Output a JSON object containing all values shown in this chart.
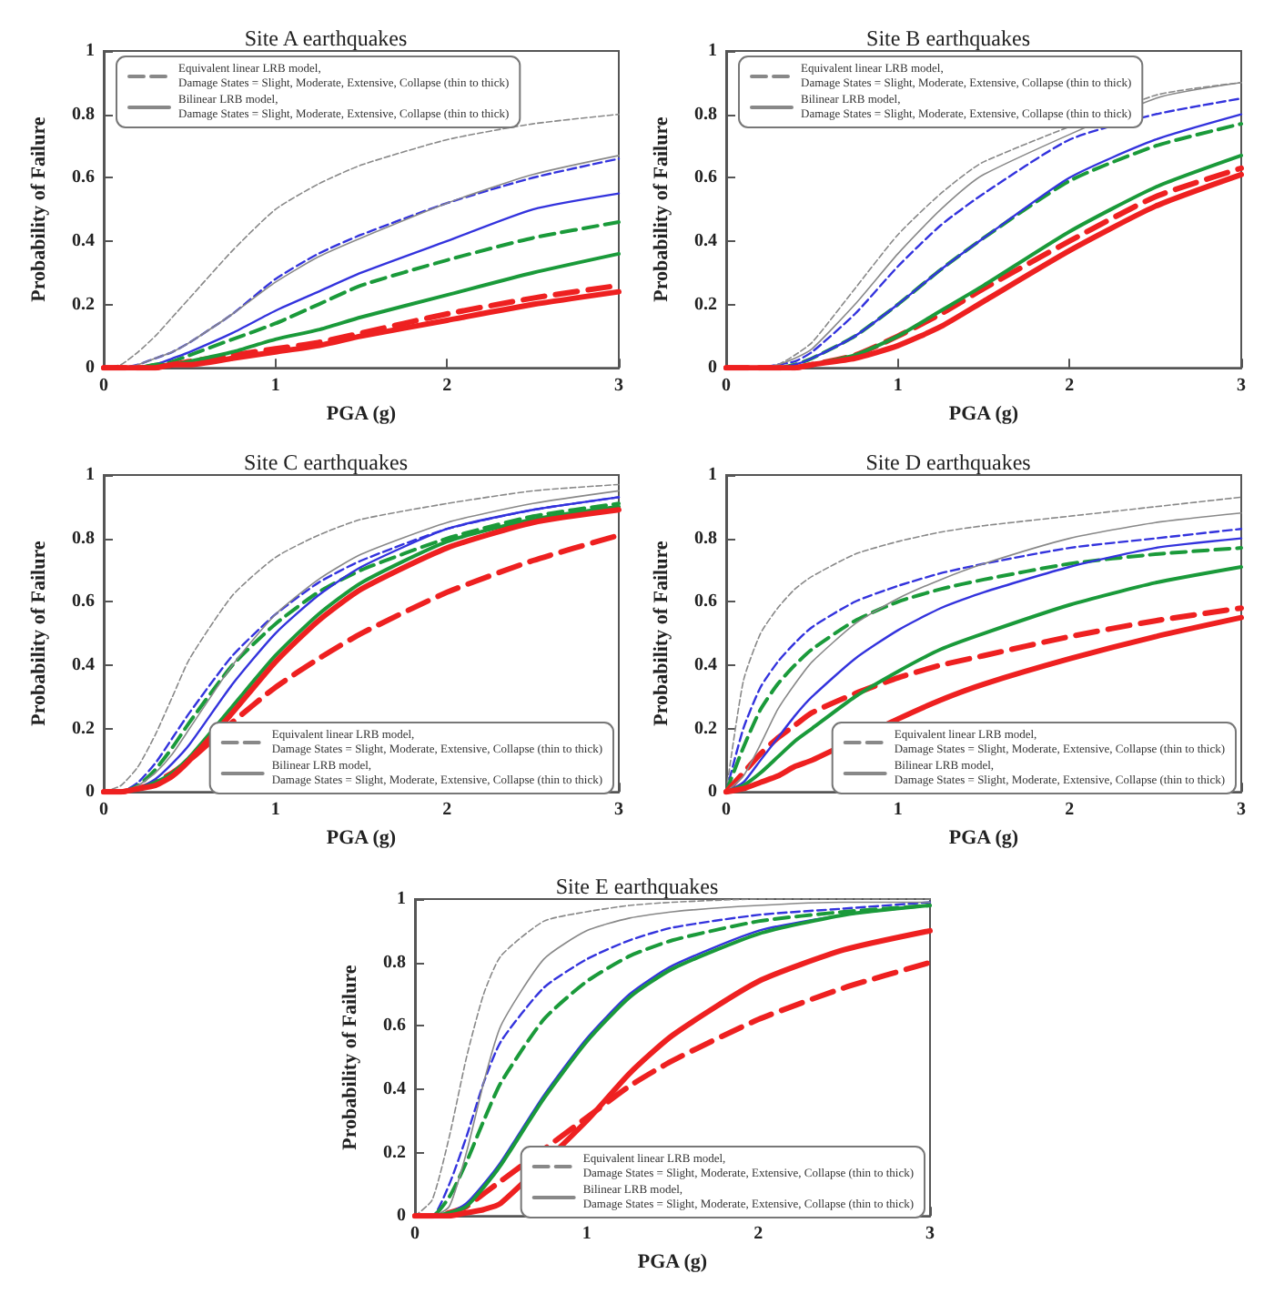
{
  "chart_data": [
    {
      "type": "line",
      "title": "Site A earthquakes",
      "xlabel": "PGA (g)",
      "ylabel": "Probability of Failure",
      "xlim": [
        0,
        3
      ],
      "xticks": [
        0,
        1,
        2,
        3
      ],
      "ylim": [
        0,
        1
      ],
      "yticks": [
        0,
        0.2,
        0.4,
        0.6,
        0.8,
        1
      ],
      "legend": "top left",
      "marker": "none",
      "grid": false,
      "x": [
        0,
        0.1,
        0.2,
        0.3,
        0.4,
        0.5,
        0.75,
        1,
        1.25,
        1.5,
        2,
        2.5,
        3
      ],
      "series": [
        {
          "name": "Equivalent linear LRB model,\nDamage States = Slight, Moderate, Extensive, Collapse (thin to thick)",
          "color": "#888888",
          "line_style": "dashed",
          "values": [
            0,
            0.01,
            0.05,
            0.1,
            0.16,
            0.22,
            0.37,
            0.5,
            0.58,
            0.64,
            0.72,
            0.77,
            0.8
          ]
        },
        {
          "color": "#3333dd",
          "line_style": "dashed",
          "values": [
            0,
            0,
            0.01,
            0.03,
            0.05,
            0.08,
            0.17,
            0.28,
            0.36,
            0.42,
            0.52,
            0.6,
            0.66
          ]
        },
        {
          "color": "#1a9a3a",
          "line_style": "dashed",
          "values": [
            0,
            0,
            0,
            0.01,
            0.02,
            0.04,
            0.09,
            0.14,
            0.2,
            0.26,
            0.34,
            0.41,
            0.46
          ]
        },
        {
          "color": "#ee2020",
          "line_style": "dashed",
          "values": [
            0,
            0,
            0,
            0,
            0.01,
            0.02,
            0.04,
            0.06,
            0.08,
            0.11,
            0.17,
            0.22,
            0.26
          ]
        },
        {
          "name": "Bilinear LRB model,\nDamage States = Slight, Moderate, Extensive, Collapse (thin to thick)",
          "color": "#888888",
          "line_style": "solid",
          "values": [
            0,
            0,
            0.01,
            0.03,
            0.05,
            0.08,
            0.17,
            0.27,
            0.35,
            0.41,
            0.52,
            0.61,
            0.67
          ]
        },
        {
          "color": "#3333dd",
          "line_style": "solid",
          "values": [
            0,
            0,
            0,
            0.01,
            0.03,
            0.05,
            0.11,
            0.18,
            0.24,
            0.3,
            0.4,
            0.5,
            0.55
          ]
        },
        {
          "color": "#1a9a3a",
          "line_style": "solid",
          "values": [
            0,
            0,
            0,
            0.01,
            0.01,
            0.02,
            0.05,
            0.09,
            0.12,
            0.16,
            0.23,
            0.3,
            0.36
          ]
        },
        {
          "color": "#ee2020",
          "line_style": "solid",
          "values": [
            0,
            0,
            0,
            0,
            0.01,
            0.01,
            0.03,
            0.05,
            0.07,
            0.1,
            0.15,
            0.2,
            0.24
          ]
        }
      ]
    },
    {
      "type": "line",
      "title": "Site B earthquakes",
      "xlabel": "PGA (g)",
      "ylabel": "Probability of Failure",
      "xlim": [
        0,
        3
      ],
      "xticks": [
        0,
        1,
        2,
        3
      ],
      "ylim": [
        0,
        1
      ],
      "yticks": [
        0,
        0.2,
        0.4,
        0.6,
        0.8,
        1
      ],
      "legend": "top left",
      "marker": "none",
      "grid": false,
      "x": [
        0,
        0.1,
        0.2,
        0.3,
        0.4,
        0.5,
        0.75,
        1,
        1.25,
        1.5,
        2,
        2.5,
        3
      ],
      "series": [
        {
          "name": "Equivalent linear LRB model,\nDamage States = Slight, Moderate, Extensive, Collapse (thin to thick)",
          "color": "#888888",
          "line_style": "dashed",
          "values": [
            0,
            0,
            0,
            0.01,
            0.04,
            0.08,
            0.25,
            0.42,
            0.55,
            0.65,
            null,
            0.86,
            0.9
          ]
        },
        {
          "color": "#3333dd",
          "line_style": "dashed",
          "values": [
            0,
            0,
            0,
            0.01,
            0.02,
            0.05,
            0.17,
            0.32,
            0.45,
            0.55,
            0.72,
            0.8,
            0.85
          ]
        },
        {
          "color": "#1a9a3a",
          "line_style": "dashed",
          "values": [
            null,
            null,
            0,
            0,
            0.01,
            0.03,
            0.1,
            0.2,
            0.31,
            0.41,
            0.59,
            0.7,
            0.77
          ]
        },
        {
          "color": "#ee2020",
          "line_style": "dashed",
          "values": [
            0,
            0,
            0,
            0,
            0,
            0.01,
            0.04,
            0.1,
            0.17,
            0.25,
            0.4,
            0.54,
            0.63
          ]
        },
        {
          "name": "Bilinear LRB model,\nDamage States = Slight, Moderate, Extensive, Collapse (thin to thick)",
          "color": "#888888",
          "line_style": "solid",
          "values": [
            0,
            0,
            0,
            0.01,
            0.03,
            0.06,
            0.2,
            0.36,
            0.5,
            0.61,
            null,
            0.85,
            0.9
          ]
        },
        {
          "color": "#3333dd",
          "line_style": "solid",
          "values": [
            0,
            0,
            0,
            0,
            0.01,
            0.03,
            0.1,
            0.2,
            0.31,
            0.41,
            0.6,
            0.72,
            0.8
          ]
        },
        {
          "color": "#1a9a3a",
          "line_style": "solid",
          "values": [
            null,
            null,
            0,
            0,
            0,
            0.01,
            0.04,
            0.1,
            0.18,
            0.26,
            0.43,
            0.57,
            0.67
          ]
        },
        {
          "color": "#ee2020",
          "line_style": "solid",
          "values": [
            0,
            0,
            0,
            0,
            0,
            0.01,
            0.03,
            0.07,
            0.13,
            0.21,
            0.37,
            0.51,
            0.61
          ]
        }
      ]
    },
    {
      "type": "line",
      "title": "Site C earthquakes",
      "xlabel": "PGA (g)",
      "ylabel": "Probability of Failure",
      "xlim": [
        0,
        3
      ],
      "xticks": [
        0,
        1,
        2,
        3
      ],
      "ylim": [
        0,
        1
      ],
      "yticks": [
        0,
        0.2,
        0.4,
        0.6,
        0.8,
        1
      ],
      "legend": "bottom right",
      "marker": "none",
      "grid": false,
      "x": [
        0,
        0.1,
        0.2,
        0.3,
        0.4,
        0.5,
        0.75,
        1,
        1.25,
        1.5,
        2,
        2.5,
        3
      ],
      "series": [
        {
          "name": "Equivalent linear LRB model,\nDamage States = Slight, Moderate, Extensive, Collapse (thin to thick)",
          "color": "#888888",
          "line_style": "dashed",
          "values": [
            0,
            0.02,
            0.08,
            0.18,
            0.3,
            0.42,
            0.62,
            0.74,
            0.81,
            0.86,
            0.91,
            0.95,
            0.97
          ]
        },
        {
          "color": "#3333dd",
          "line_style": "dashed",
          "values": [
            0,
            0,
            0.03,
            0.09,
            0.17,
            0.25,
            0.43,
            0.56,
            0.66,
            0.73,
            0.83,
            0.89,
            0.93
          ]
        },
        {
          "color": "#1a9a3a",
          "line_style": "dashed",
          "values": [
            0,
            0,
            0.02,
            0.07,
            0.14,
            0.22,
            0.4,
            0.53,
            0.63,
            0.7,
            0.8,
            0.87,
            0.91
          ]
        },
        {
          "color": "#ee2020",
          "line_style": "dashed",
          "values": [
            0,
            0,
            0.01,
            0.03,
            0.06,
            0.1,
            0.22,
            0.33,
            0.42,
            0.5,
            0.63,
            0.73,
            0.81
          ]
        },
        {
          "name": "Bilinear LRB model,\nDamage States = Slight, Moderate, Extensive, Collapse (thin to thick)",
          "color": "#888888",
          "line_style": "solid",
          "values": [
            0,
            0,
            0.02,
            0.06,
            0.12,
            0.2,
            0.4,
            0.56,
            0.67,
            0.75,
            0.85,
            0.91,
            0.95
          ]
        },
        {
          "color": "#3333dd",
          "line_style": "solid",
          "values": [
            0,
            0,
            0.01,
            0.04,
            0.09,
            0.15,
            0.34,
            0.5,
            0.62,
            0.71,
            0.83,
            0.89,
            0.93
          ]
        },
        {
          "color": "#1a9a3a",
          "line_style": "solid",
          "values": [
            0,
            0,
            0.01,
            0.03,
            0.06,
            0.11,
            0.27,
            0.43,
            0.56,
            0.66,
            0.79,
            0.86,
            0.9
          ]
        },
        {
          "color": "#ee2020",
          "line_style": "solid",
          "values": [
            0,
            0,
            0.01,
            0.02,
            0.05,
            0.1,
            0.25,
            0.41,
            0.54,
            0.64,
            0.77,
            0.85,
            0.89
          ]
        }
      ]
    },
    {
      "type": "line",
      "title": "Site D earthquakes",
      "xlabel": "PGA (g)",
      "ylabel": "Probability of Failure",
      "xlim": [
        0,
        3
      ],
      "xticks": [
        0,
        1,
        2,
        3
      ],
      "ylim": [
        0,
        1
      ],
      "yticks": [
        0,
        0.2,
        0.4,
        0.6,
        0.8,
        1
      ],
      "legend": "bottom right",
      "marker": "none",
      "grid": false,
      "x": [
        0,
        0.1,
        0.2,
        0.3,
        0.4,
        0.5,
        0.75,
        1,
        1.25,
        1.5,
        2,
        2.5,
        3
      ],
      "series": [
        {
          "name": "Equivalent linear LRB model,\nDamage States = Slight, Moderate, Extensive, Collapse (thin to thick)",
          "color": "#888888",
          "line_style": "dashed",
          "values": [
            0,
            0.35,
            0.5,
            0.58,
            0.64,
            0.68,
            0.75,
            0.79,
            0.82,
            0.84,
            0.87,
            0.9,
            0.93
          ]
        },
        {
          "color": "#3333dd",
          "line_style": "dashed",
          "values": [
            0,
            0.2,
            0.33,
            0.41,
            0.47,
            0.52,
            0.6,
            0.65,
            0.69,
            0.72,
            0.77,
            0.8,
            0.83
          ]
        },
        {
          "color": "#1a9a3a",
          "line_style": "dashed",
          "values": [
            0,
            0.14,
            0.26,
            0.34,
            0.4,
            0.45,
            0.54,
            0.6,
            0.64,
            0.67,
            0.72,
            0.75,
            0.77
          ]
        },
        {
          "color": "#ee2020",
          "line_style": "dashed",
          "values": [
            0,
            0.06,
            0.12,
            0.17,
            0.21,
            0.25,
            0.31,
            0.36,
            0.4,
            0.43,
            0.49,
            0.54,
            0.58
          ]
        },
        {
          "name": "Bilinear LRB model,\nDamage States = Slight, Moderate, Extensive, Collapse (thin to thick)",
          "color": "#888888",
          "line_style": "solid",
          "values": [
            0,
            0.05,
            0.15,
            0.26,
            0.34,
            0.41,
            0.53,
            0.61,
            0.67,
            0.72,
            0.8,
            0.85,
            0.88
          ]
        },
        {
          "color": "#3333dd",
          "line_style": "solid",
          "values": [
            0,
            0.03,
            0.1,
            0.17,
            0.24,
            0.3,
            0.42,
            0.51,
            0.58,
            0.63,
            0.71,
            0.77,
            0.8
          ]
        },
        {
          "color": "#1a9a3a",
          "line_style": "solid",
          "values": [
            0,
            0.02,
            0.06,
            0.11,
            0.16,
            0.2,
            0.3,
            0.38,
            0.45,
            0.5,
            0.59,
            0.66,
            0.71
          ]
        },
        {
          "color": "#ee2020",
          "line_style": "solid",
          "values": [
            0,
            0.01,
            0.03,
            0.05,
            0.08,
            0.1,
            null,
            0.23,
            0.29,
            0.34,
            0.42,
            0.49,
            0.55
          ]
        }
      ]
    },
    {
      "type": "line",
      "title": "Site E earthquakes",
      "xlabel": "PGA (g)",
      "ylabel": "Probability of Failure",
      "xlim": [
        0,
        3
      ],
      "xticks": [
        0,
        1,
        2,
        3
      ],
      "ylim": [
        0,
        1
      ],
      "yticks": [
        0,
        0.2,
        0.4,
        0.6,
        0.8,
        1
      ],
      "legend": "bottom right",
      "marker": "none",
      "grid": false,
      "x": [
        0,
        0.1,
        0.2,
        0.3,
        0.4,
        0.5,
        0.75,
        1,
        1.25,
        1.5,
        2,
        2.5,
        3
      ],
      "series": [
        {
          "name": "Equivalent linear LRB model,\nDamage States = Slight, Moderate, Extensive, Collapse (thin to thick)",
          "color": "#888888",
          "line_style": "dashed",
          "values": [
            0,
            0.05,
            0.25,
            0.5,
            0.7,
            0.82,
            0.93,
            0.96,
            0.98,
            0.99,
            1,
            1,
            1
          ]
        },
        {
          "color": "#3333dd",
          "line_style": "dashed",
          "values": [
            0,
            0,
            0.1,
            0.25,
            0.42,
            0.55,
            0.72,
            0.81,
            0.87,
            0.91,
            0.95,
            0.97,
            0.99
          ]
        },
        {
          "color": "#1a9a3a",
          "line_style": "dashed",
          "values": [
            0,
            0,
            0.06,
            0.17,
            0.3,
            0.42,
            0.62,
            0.74,
            0.82,
            0.87,
            0.93,
            0.96,
            0.98
          ]
        },
        {
          "color": "#ee2020",
          "line_style": "dashed",
          "values": [
            0,
            0,
            0.01,
            0.03,
            0.07,
            0.11,
            0.21,
            0.31,
            0.41,
            0.49,
            0.62,
            0.72,
            0.8
          ]
        },
        {
          "name": "Bilinear LRB model,\nDamage States = Slight, Moderate, Extensive, Collapse (thin to thick)",
          "color": "#888888",
          "line_style": "solid",
          "values": [
            0,
            0,
            0.03,
            0.2,
            0.42,
            0.6,
            0.81,
            0.9,
            0.94,
            0.96,
            0.98,
            0.99,
            0.99
          ]
        },
        {
          "color": "#3333dd",
          "line_style": "solid",
          "values": [
            0,
            0,
            0.01,
            0.04,
            0.1,
            0.17,
            0.38,
            0.56,
            0.7,
            0.79,
            0.9,
            0.95,
            0.98
          ]
        },
        {
          "color": "#1a9a3a",
          "line_style": "solid",
          "values": [
            0,
            0,
            0.01,
            0.03,
            0.09,
            0.16,
            0.37,
            0.55,
            0.69,
            0.78,
            0.89,
            0.95,
            0.98
          ]
        },
        {
          "color": "#ee2020",
          "line_style": "solid",
          "values": [
            0,
            0,
            0,
            0.01,
            0.02,
            0.04,
            null,
            0.3,
            0.45,
            0.57,
            0.74,
            0.84,
            0.9
          ]
        }
      ]
    }
  ]
}
